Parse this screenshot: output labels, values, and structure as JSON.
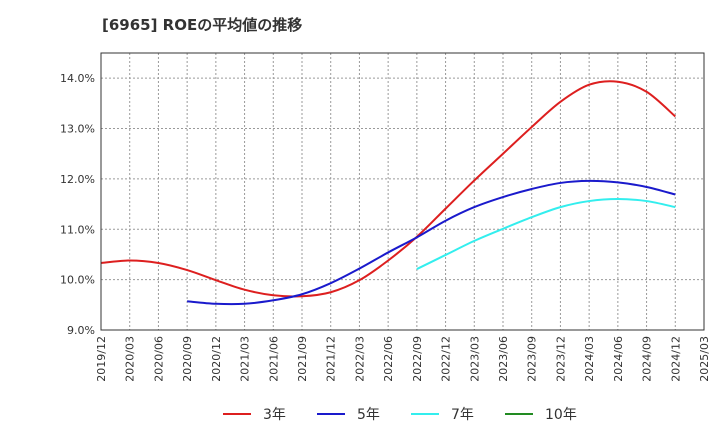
{
  "chart_data": {
    "type": "line",
    "title": "[6965]  ROEの平均値の推移",
    "xlabel": "",
    "ylabel": "",
    "x_categories": [
      "2019/12",
      "2020/03",
      "2020/06",
      "2020/09",
      "2020/12",
      "2021/03",
      "2021/06",
      "2021/09",
      "2021/12",
      "2022/03",
      "2022/06",
      "2022/09",
      "2022/12",
      "2023/03",
      "2023/06",
      "2023/09",
      "2023/12",
      "2024/03",
      "2024/06",
      "2024/09",
      "2024/12",
      "2025/03"
    ],
    "ylim": [
      9.0,
      14.5
    ],
    "y_ticks": [
      9.0,
      10.0,
      11.0,
      12.0,
      13.0,
      14.0
    ],
    "y_tick_labels": [
      "9.0%",
      "10.0%",
      "11.0%",
      "12.0%",
      "13.0%",
      "14.0%"
    ],
    "grid": true,
    "legend_position": "bottom",
    "series": [
      {
        "name": "3年",
        "color": "#dd1f1f",
        "points": [
          [
            0,
            10.33
          ],
          [
            1,
            10.38
          ],
          [
            2,
            10.33
          ],
          [
            3,
            10.19
          ],
          [
            4,
            9.99
          ],
          [
            5,
            9.8
          ],
          [
            6,
            9.69
          ],
          [
            7,
            9.67
          ],
          [
            8,
            9.75
          ],
          [
            9,
            9.99
          ],
          [
            10,
            10.38
          ],
          [
            11,
            10.85
          ],
          [
            12,
            11.41
          ],
          [
            13,
            11.97
          ],
          [
            14,
            12.5
          ],
          [
            15,
            13.03
          ],
          [
            16,
            13.53
          ],
          [
            17,
            13.87
          ],
          [
            18,
            13.93
          ],
          [
            19,
            13.73
          ],
          [
            20,
            13.24
          ]
        ]
      },
      {
        "name": "5年",
        "color": "#1a1acc",
        "points": [
          [
            3,
            9.57
          ],
          [
            4,
            9.52
          ],
          [
            5,
            9.52
          ],
          [
            6,
            9.59
          ],
          [
            7,
            9.71
          ],
          [
            8,
            9.93
          ],
          [
            9,
            10.22
          ],
          [
            10,
            10.54
          ],
          [
            11,
            10.84
          ],
          [
            12,
            11.17
          ],
          [
            13,
            11.44
          ],
          [
            14,
            11.64
          ],
          [
            15,
            11.8
          ],
          [
            16,
            11.92
          ],
          [
            17,
            11.96
          ],
          [
            18,
            11.93
          ],
          [
            19,
            11.84
          ],
          [
            20,
            11.69
          ]
        ]
      },
      {
        "name": "7年",
        "color": "#33eeee",
        "points": [
          [
            11,
            10.21
          ],
          [
            12,
            10.49
          ],
          [
            13,
            10.77
          ],
          [
            14,
            11.01
          ],
          [
            15,
            11.24
          ],
          [
            16,
            11.44
          ],
          [
            17,
            11.56
          ],
          [
            18,
            11.6
          ],
          [
            19,
            11.56
          ],
          [
            20,
            11.44
          ]
        ]
      },
      {
        "name": "10年",
        "color": "#228b22",
        "points": []
      }
    ]
  }
}
